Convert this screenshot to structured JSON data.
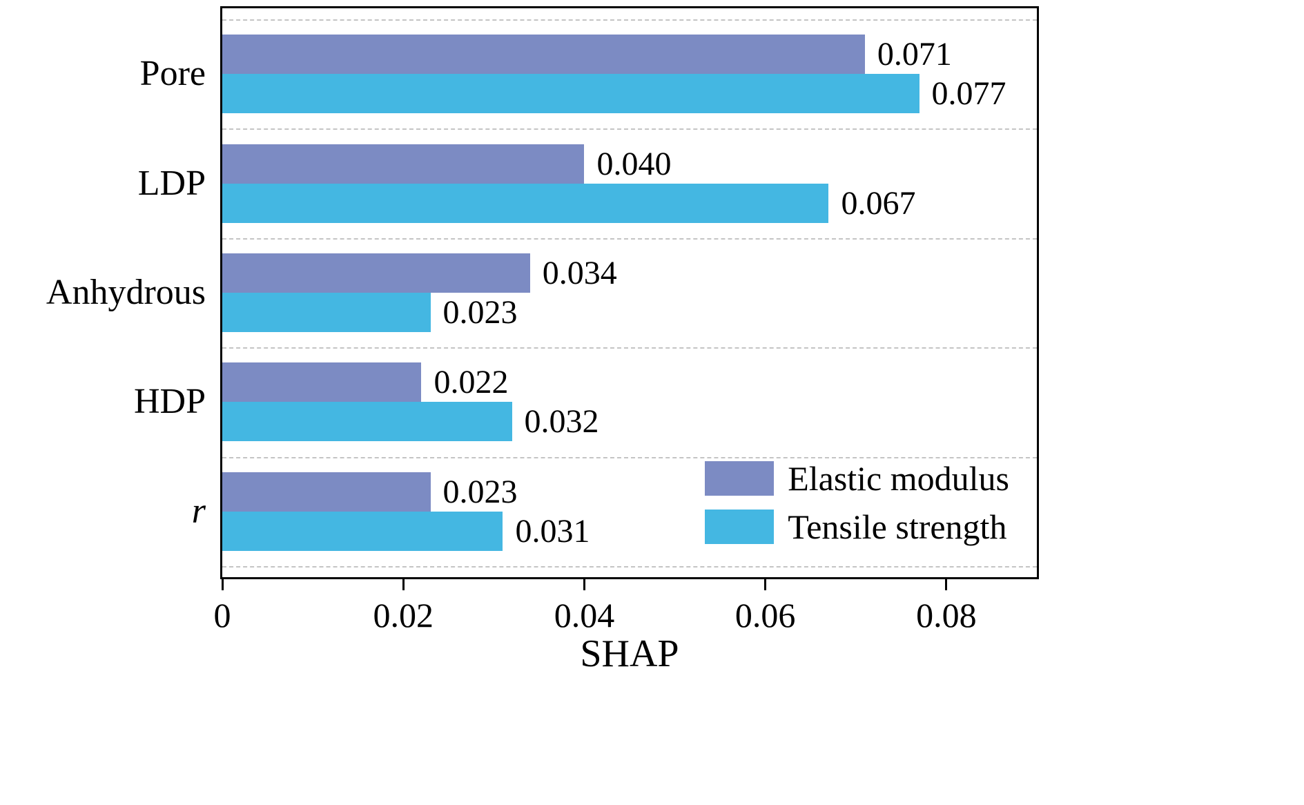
{
  "chart_data": {
    "type": "bar",
    "orientation": "horizontal",
    "title": "",
    "xlabel": "SHAP",
    "ylabel": "",
    "categories": [
      "Pore",
      "LDP",
      "Anhydrous",
      "HDP",
      "r"
    ],
    "category_styles": [
      "normal",
      "normal",
      "normal",
      "normal",
      "italic"
    ],
    "series": [
      {
        "name": "Elastic modulus",
        "color": "#7c8bc3",
        "values": [
          0.071,
          0.04,
          0.034,
          0.022,
          0.023
        ],
        "labels": [
          "0.071",
          "0.040",
          "0.034",
          "0.022",
          "0.023"
        ]
      },
      {
        "name": "Tensile strength",
        "color": "#44b7e2",
        "values": [
          0.077,
          0.067,
          0.023,
          0.032,
          0.031
        ],
        "labels": [
          "0.077",
          "0.067",
          "0.023",
          "0.032",
          "0.031"
        ]
      }
    ],
    "x_axis": {
      "min": 0,
      "max": 0.09,
      "ticks": [
        0,
        0.02,
        0.04,
        0.06,
        0.08
      ],
      "tick_labels": [
        "0",
        "0.02",
        "0.04",
        "0.06",
        "0.08"
      ]
    },
    "grid": {
      "show": true,
      "style": "dashed",
      "color": "#c4c4c4",
      "axis": "y-boundaries"
    },
    "legend": {
      "position": "lower right",
      "entries": [
        "Elastic modulus",
        "Tensile strength"
      ]
    }
  }
}
